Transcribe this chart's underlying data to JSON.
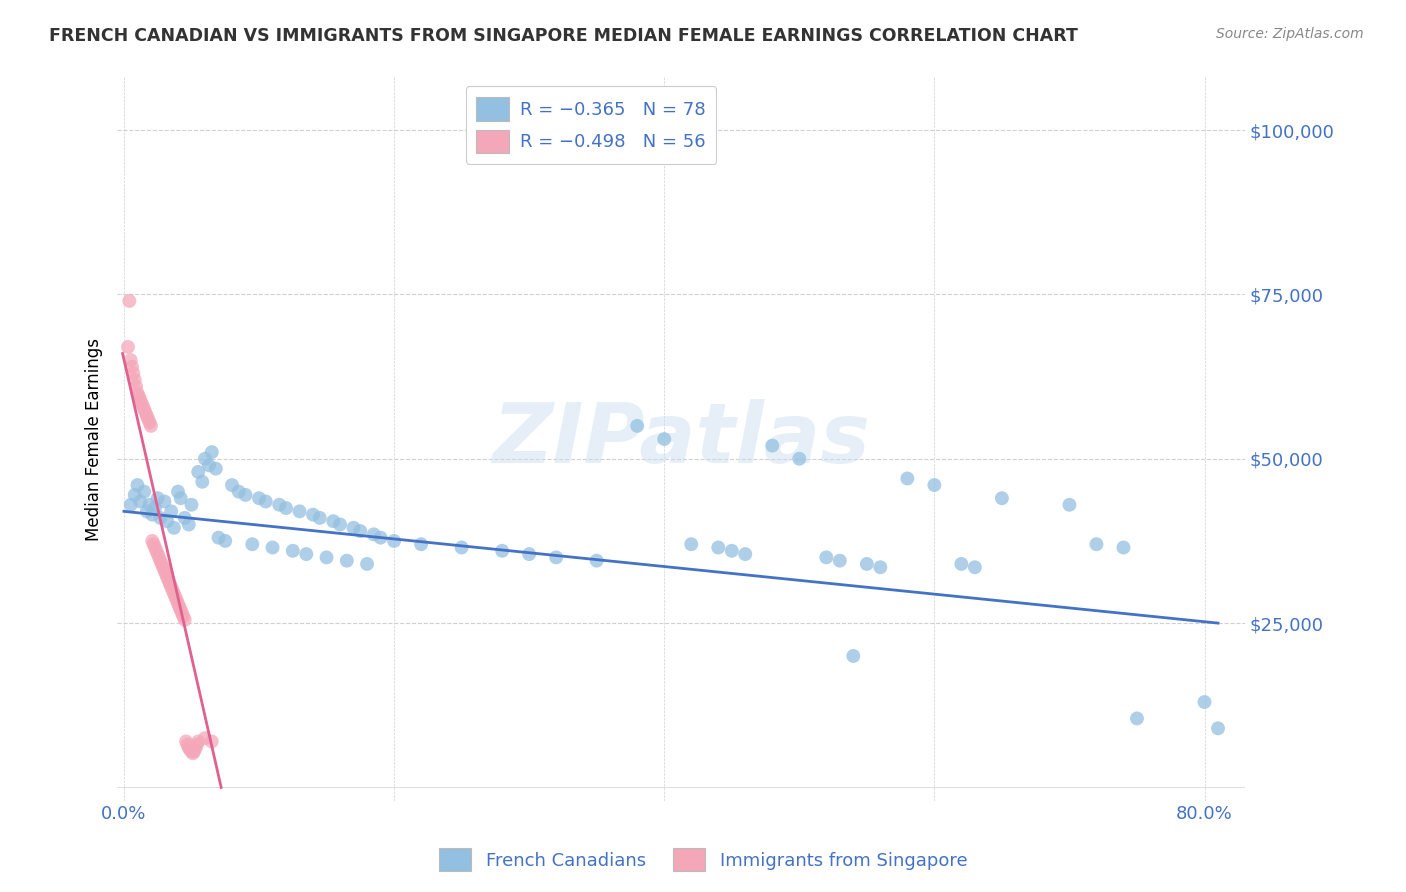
{
  "title": "FRENCH CANADIAN VS IMMIGRANTS FROM SINGAPORE MEDIAN FEMALE EARNINGS CORRELATION CHART",
  "source": "Source: ZipAtlas.com",
  "ylabel": "Median Female Earnings",
  "xlabel_ticks": [
    "0.0%",
    "80.0%"
  ],
  "xlabel_vals": [
    0.0,
    0.8
  ],
  "ylabel_ticks_right": [
    "$25,000",
    "$50,000",
    "$75,000",
    "$100,000"
  ],
  "ylabel_vals_right": [
    25000,
    50000,
    75000,
    100000
  ],
  "xlim": [
    -0.005,
    0.83
  ],
  "ylim": [
    -2000,
    108000
  ],
  "watermark": "ZIPatlas",
  "blue_color": "#93bfe0",
  "pink_color": "#f4a7b9",
  "line_blue": "#4472c4",
  "line_pink": "#e06090",
  "title_color": "#333333",
  "axis_color": "#4472c4",
  "grid_color": "#d0d0d0",
  "blue_scatter": [
    [
      0.005,
      43000
    ],
    [
      0.008,
      44500
    ],
    [
      0.01,
      46000
    ],
    [
      0.012,
      43500
    ],
    [
      0.015,
      45000
    ],
    [
      0.017,
      42000
    ],
    [
      0.019,
      43000
    ],
    [
      0.021,
      41500
    ],
    [
      0.023,
      42500
    ],
    [
      0.025,
      44000
    ],
    [
      0.027,
      41000
    ],
    [
      0.03,
      43500
    ],
    [
      0.032,
      40500
    ],
    [
      0.035,
      42000
    ],
    [
      0.037,
      39500
    ],
    [
      0.04,
      45000
    ],
    [
      0.042,
      44000
    ],
    [
      0.045,
      41000
    ],
    [
      0.048,
      40000
    ],
    [
      0.05,
      43000
    ],
    [
      0.055,
      48000
    ],
    [
      0.058,
      46500
    ],
    [
      0.06,
      50000
    ],
    [
      0.063,
      49000
    ],
    [
      0.065,
      51000
    ],
    [
      0.068,
      48500
    ],
    [
      0.07,
      38000
    ],
    [
      0.075,
      37500
    ],
    [
      0.08,
      46000
    ],
    [
      0.085,
      45000
    ],
    [
      0.09,
      44500
    ],
    [
      0.095,
      37000
    ],
    [
      0.1,
      44000
    ],
    [
      0.105,
      43500
    ],
    [
      0.11,
      36500
    ],
    [
      0.115,
      43000
    ],
    [
      0.12,
      42500
    ],
    [
      0.125,
      36000
    ],
    [
      0.13,
      42000
    ],
    [
      0.135,
      35500
    ],
    [
      0.14,
      41500
    ],
    [
      0.145,
      41000
    ],
    [
      0.15,
      35000
    ],
    [
      0.155,
      40500
    ],
    [
      0.16,
      40000
    ],
    [
      0.165,
      34500
    ],
    [
      0.17,
      39500
    ],
    [
      0.175,
      39000
    ],
    [
      0.18,
      34000
    ],
    [
      0.185,
      38500
    ],
    [
      0.19,
      38000
    ],
    [
      0.2,
      37500
    ],
    [
      0.22,
      37000
    ],
    [
      0.25,
      36500
    ],
    [
      0.28,
      36000
    ],
    [
      0.3,
      35500
    ],
    [
      0.32,
      35000
    ],
    [
      0.35,
      34500
    ],
    [
      0.38,
      55000
    ],
    [
      0.4,
      53000
    ],
    [
      0.42,
      37000
    ],
    [
      0.44,
      36500
    ],
    [
      0.45,
      36000
    ],
    [
      0.46,
      35500
    ],
    [
      0.48,
      52000
    ],
    [
      0.5,
      50000
    ],
    [
      0.52,
      35000
    ],
    [
      0.53,
      34500
    ],
    [
      0.54,
      20000
    ],
    [
      0.55,
      34000
    ],
    [
      0.56,
      33500
    ],
    [
      0.58,
      47000
    ],
    [
      0.6,
      46000
    ],
    [
      0.62,
      34000
    ],
    [
      0.63,
      33500
    ],
    [
      0.65,
      44000
    ],
    [
      0.7,
      43000
    ],
    [
      0.72,
      37000
    ],
    [
      0.74,
      36500
    ],
    [
      0.75,
      10500
    ],
    [
      0.8,
      13000
    ],
    [
      0.81,
      9000
    ]
  ],
  "pink_scatter": [
    [
      0.003,
      67000
    ],
    [
      0.004,
      74000
    ],
    [
      0.005,
      65000
    ],
    [
      0.006,
      64000
    ],
    [
      0.007,
      63000
    ],
    [
      0.008,
      62000
    ],
    [
      0.009,
      61000
    ],
    [
      0.01,
      60000
    ],
    [
      0.011,
      59500
    ],
    [
      0.012,
      59000
    ],
    [
      0.013,
      58500
    ],
    [
      0.014,
      58000
    ],
    [
      0.015,
      57500
    ],
    [
      0.016,
      57000
    ],
    [
      0.017,
      56500
    ],
    [
      0.018,
      56000
    ],
    [
      0.019,
      55500
    ],
    [
      0.02,
      55000
    ],
    [
      0.021,
      37500
    ],
    [
      0.022,
      37000
    ],
    [
      0.023,
      36500
    ],
    [
      0.024,
      36000
    ],
    [
      0.025,
      35500
    ],
    [
      0.026,
      35000
    ],
    [
      0.027,
      34500
    ],
    [
      0.028,
      34000
    ],
    [
      0.029,
      33500
    ],
    [
      0.03,
      33000
    ],
    [
      0.031,
      32500
    ],
    [
      0.032,
      32000
    ],
    [
      0.033,
      31500
    ],
    [
      0.034,
      31000
    ],
    [
      0.035,
      30500
    ],
    [
      0.036,
      30000
    ],
    [
      0.037,
      29500
    ],
    [
      0.038,
      29000
    ],
    [
      0.039,
      28500
    ],
    [
      0.04,
      28000
    ],
    [
      0.041,
      27500
    ],
    [
      0.042,
      27000
    ],
    [
      0.043,
      26500
    ],
    [
      0.044,
      26000
    ],
    [
      0.045,
      25500
    ],
    [
      0.046,
      7000
    ],
    [
      0.047,
      6500
    ],
    [
      0.048,
      6000
    ],
    [
      0.049,
      5800
    ],
    [
      0.05,
      5500
    ],
    [
      0.051,
      5200
    ],
    [
      0.052,
      5500
    ],
    [
      0.053,
      6000
    ],
    [
      0.054,
      6500
    ],
    [
      0.055,
      7000
    ],
    [
      0.06,
      7500
    ],
    [
      0.065,
      7000
    ]
  ],
  "blue_line_x": [
    0.0,
    0.81
  ],
  "blue_line_y": [
    42000,
    25000
  ],
  "pink_line_x": [
    -0.001,
    0.072
  ],
  "pink_line_y": [
    66000,
    0
  ]
}
